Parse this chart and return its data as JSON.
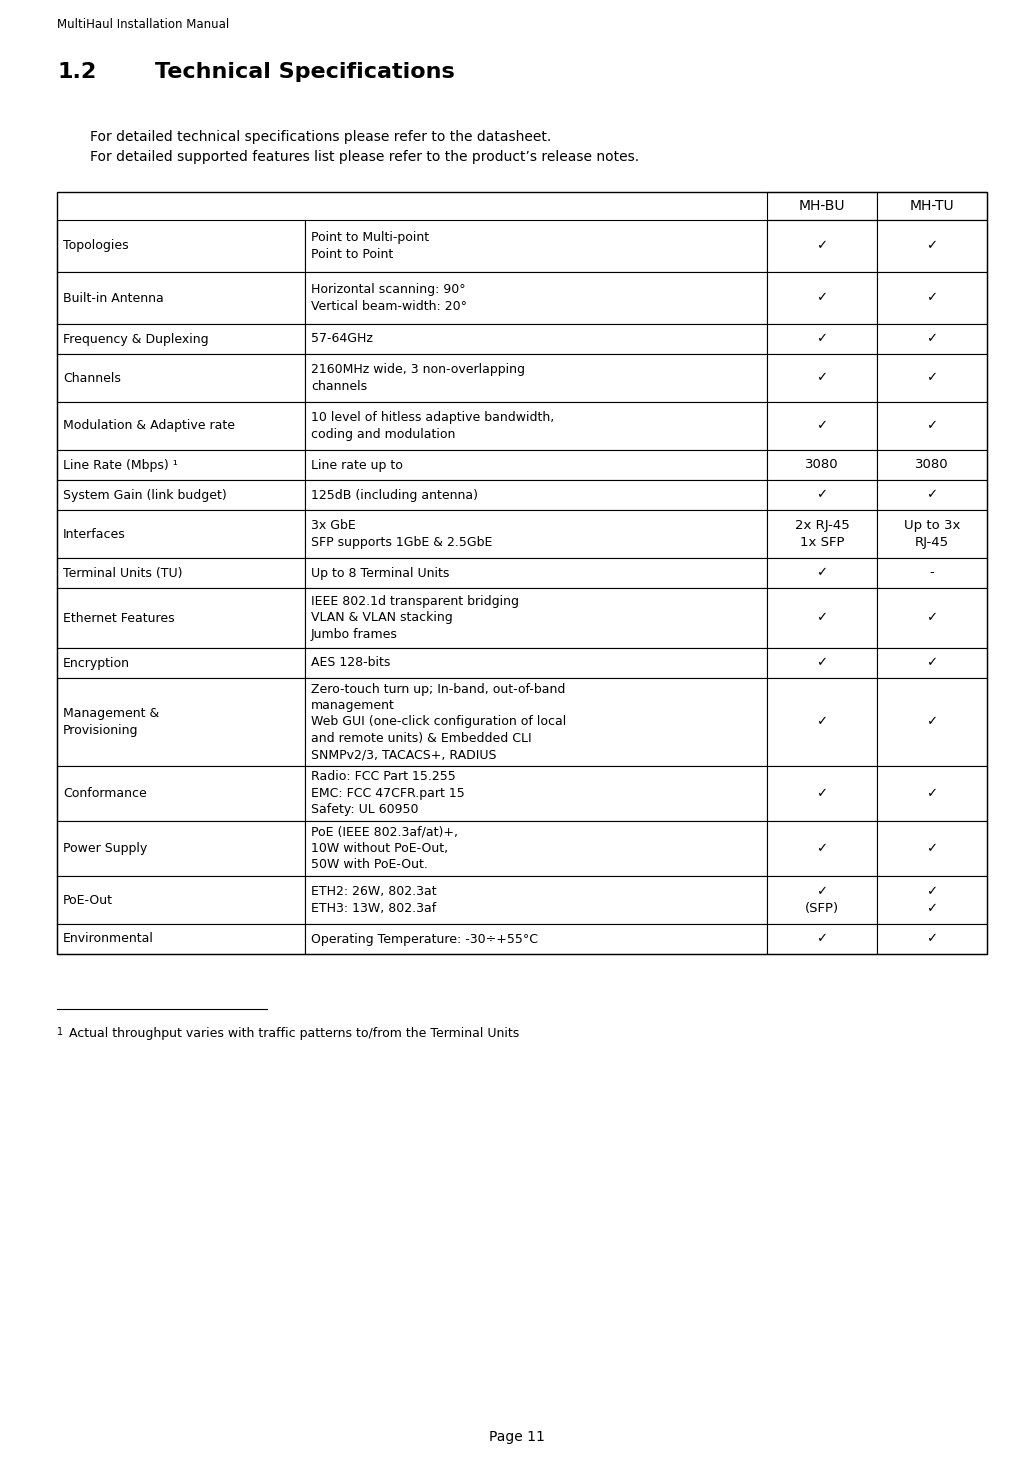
{
  "header_text": "MultiHaul Installation Manual",
  "section_number": "1.2",
  "section_title": "Technical Specifications",
  "intro_lines": [
    "For detailed technical specifications please refer to the datasheet.",
    "For detailed supported features list please refer to the product’s release notes."
  ],
  "rows": [
    {
      "col1": "Topologies",
      "col2": "Point to Multi-point\nPoint to Point",
      "mh_bu": "✓",
      "mh_tu": "✓"
    },
    {
      "col1": "Built-in Antenna",
      "col2": "Horizontal scanning: 90°\nVertical beam-width: 20°",
      "mh_bu": "✓",
      "mh_tu": "✓"
    },
    {
      "col1": "Frequency & Duplexing",
      "col2": "57-64GHz",
      "mh_bu": "✓",
      "mh_tu": "✓"
    },
    {
      "col1": "Channels",
      "col2": "2160MHz wide, 3 non-overlapping\nchannels",
      "mh_bu": "✓",
      "mh_tu": "✓"
    },
    {
      "col1": "Modulation & Adaptive rate",
      "col2": "10 level of hitless adaptive bandwidth,\ncoding and modulation",
      "mh_bu": "✓",
      "mh_tu": "✓"
    },
    {
      "col1": "Line Rate (Mbps) ¹",
      "col2": "Line rate up to",
      "mh_bu": "3080",
      "mh_tu": "3080"
    },
    {
      "col1": "System Gain (link budget)",
      "col2": "125dB (including antenna)",
      "mh_bu": "✓",
      "mh_tu": "✓"
    },
    {
      "col1": "Interfaces",
      "col2": "3x GbE\nSFP supports 1GbE & 2.5GbE",
      "mh_bu": "2x RJ-45\n1x SFP",
      "mh_tu": "Up to 3x\nRJ-45"
    },
    {
      "col1": "Terminal Units (TU)",
      "col2": "Up to 8 Terminal Units",
      "mh_bu": "✓",
      "mh_tu": "-"
    },
    {
      "col1": "Ethernet Features",
      "col2": "IEEE 802.1d transparent bridging\nVLAN & VLAN stacking\nJumbo frames",
      "mh_bu": "✓",
      "mh_tu": "✓"
    },
    {
      "col1": "Encryption",
      "col2": "AES 128-bits",
      "mh_bu": "✓",
      "mh_tu": "✓"
    },
    {
      "col1": "Management &\nProvisioning",
      "col2": "Zero-touch turn up; In-band, out-of-band\nmanagement\nWeb GUI (one-click configuration of local\nand remote units) & Embedded CLI\nSNMPv2/3, TACACS+, RADIUS",
      "mh_bu": "✓",
      "mh_tu": "✓"
    },
    {
      "col1": "Conformance",
      "col2": "Radio: FCC Part 15.255\nEMC: FCC 47CFR.part 15\nSafety: UL 60950",
      "mh_bu": "✓",
      "mh_tu": "✓"
    },
    {
      "col1": "Power Supply",
      "col2": "PoE (IEEE 802.3af/at)+,\n10W without PoE-Out,\n50W with PoE-Out.",
      "mh_bu": "✓",
      "mh_tu": "✓"
    },
    {
      "col1": "PoE-Out",
      "col2": "ETH2: 26W, 802.3at\nETH3: 13W, 802.3af",
      "mh_bu": "✓\n(SFP)",
      "mh_tu": "✓\n✓"
    },
    {
      "col1": "Environmental",
      "col2": "Operating Temperature: -30÷+55°C",
      "mh_bu": "✓",
      "mh_tu": "✓"
    }
  ],
  "footnote_sup": "1",
  "footnote_text": " Actual throughput varies with traffic patterns to/from the Terminal Units",
  "page_number": "Page 11",
  "bg_color": "#ffffff",
  "text_color": "#000000",
  "col1_superscript_row": 5,
  "superscript_marker": "(1)"
}
